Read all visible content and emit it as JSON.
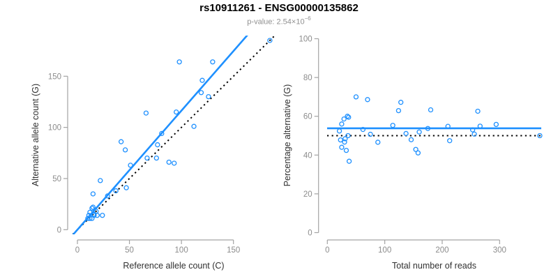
{
  "header": {
    "title": "rs10911261 - ENSG00000135862",
    "subtitle_prefix": "p-value: ",
    "subtitle_mantissa": "2.54×10",
    "subtitle_exponent": "−6"
  },
  "colors": {
    "accent_blue": "#1E90FF",
    "point_blue": "#1E90FF",
    "dotted_black": "#000000",
    "axis_gray": "#A3A3A3",
    "tick_label_gray": "#8C8C8C",
    "axis_title_dark": "#303030",
    "title_black": "#000000",
    "subtitle_gray": "#909090",
    "background": "#FFFFFF"
  },
  "chart_data": [
    {
      "id": "ref-vs-alt",
      "type": "scatter",
      "title": "",
      "xlabel": "Reference allele count (C)",
      "ylabel": "Alternative allele count (G)",
      "xticks": [
        0,
        50,
        100,
        150
      ],
      "yticks": [
        0,
        50,
        100,
        150
      ],
      "xlim": [
        0,
        190
      ],
      "ylim": [
        0,
        190
      ],
      "grid": false,
      "marker": "open-circle",
      "points": [
        [
          10,
          11
        ],
        [
          12,
          11
        ],
        [
          14,
          11
        ],
        [
          11,
          14
        ],
        [
          12,
          17
        ],
        [
          16,
          15
        ],
        [
          18,
          18
        ],
        [
          16,
          14
        ],
        [
          19,
          14
        ],
        [
          24,
          14
        ],
        [
          14,
          21
        ],
        [
          15,
          22
        ],
        [
          15,
          35
        ],
        [
          22,
          48
        ],
        [
          29,
          33
        ],
        [
          37,
          38
        ],
        [
          47,
          41
        ],
        [
          42,
          86
        ],
        [
          46,
          78
        ],
        [
          51,
          63
        ],
        [
          66,
          114
        ],
        [
          67,
          70
        ],
        [
          76,
          70
        ],
        [
          77,
          83
        ],
        [
          81,
          94
        ],
        [
          88,
          66
        ],
        [
          93,
          65
        ],
        [
          95,
          115
        ],
        [
          98,
          164
        ],
        [
          112,
          101
        ],
        [
          119,
          134
        ],
        [
          120,
          146
        ],
        [
          126,
          130
        ],
        [
          130,
          164
        ],
        [
          185,
          185
        ]
      ],
      "lines": [
        {
          "name": "identity-line",
          "kind": "abline",
          "slope": 1,
          "intercept": 0,
          "style": "dotted",
          "color": "#000000"
        },
        {
          "name": "regression-line",
          "kind": "abline",
          "slope": 1.164,
          "intercept": 0,
          "style": "solid",
          "color": "#1E90FF"
        }
      ]
    },
    {
      "id": "reads-vs-percentage",
      "type": "scatter",
      "title": "",
      "xlabel": "Total number of reads",
      "ylabel": "Percentage alternative (G)",
      "xticks": [
        0,
        100,
        200,
        300
      ],
      "yticks": [
        0,
        20,
        40,
        60,
        80,
        100
      ],
      "xlim": [
        0,
        372
      ],
      "ylim": [
        0,
        100
      ],
      "grid": false,
      "marker": "open-circle",
      "points": [
        [
          21,
          52.4
        ],
        [
          23,
          47.8
        ],
        [
          25,
          44.0
        ],
        [
          25,
          56.0
        ],
        [
          29,
          58.6
        ],
        [
          31,
          48.4
        ],
        [
          36,
          50.0
        ],
        [
          30,
          46.7
        ],
        [
          33,
          42.4
        ],
        [
          38,
          36.8
        ],
        [
          35,
          60.0
        ],
        [
          37,
          59.5
        ],
        [
          50,
          70.0
        ],
        [
          70,
          68.6
        ],
        [
          62,
          53.2
        ],
        [
          75,
          50.7
        ],
        [
          88,
          46.6
        ],
        [
          128,
          67.2
        ],
        [
          124,
          62.9
        ],
        [
          114,
          55.3
        ],
        [
          180,
          63.3
        ],
        [
          137,
          51.1
        ],
        [
          146,
          47.9
        ],
        [
          160,
          51.9
        ],
        [
          175,
          53.7
        ],
        [
          154,
          42.9
        ],
        [
          158,
          41.1
        ],
        [
          210,
          54.8
        ],
        [
          262,
          62.6
        ],
        [
          213,
          47.4
        ],
        [
          253,
          53.0
        ],
        [
          266,
          54.9
        ],
        [
          256,
          50.8
        ],
        [
          294,
          55.8
        ],
        [
          370,
          50.0
        ]
      ],
      "lines": [
        {
          "name": "null-50-line",
          "kind": "hline",
          "value": 50,
          "style": "dotted",
          "color": "#000000"
        },
        {
          "name": "mean-percentage-line",
          "kind": "hline",
          "value": 53.8,
          "style": "solid",
          "color": "#1E90FF"
        }
      ]
    }
  ]
}
